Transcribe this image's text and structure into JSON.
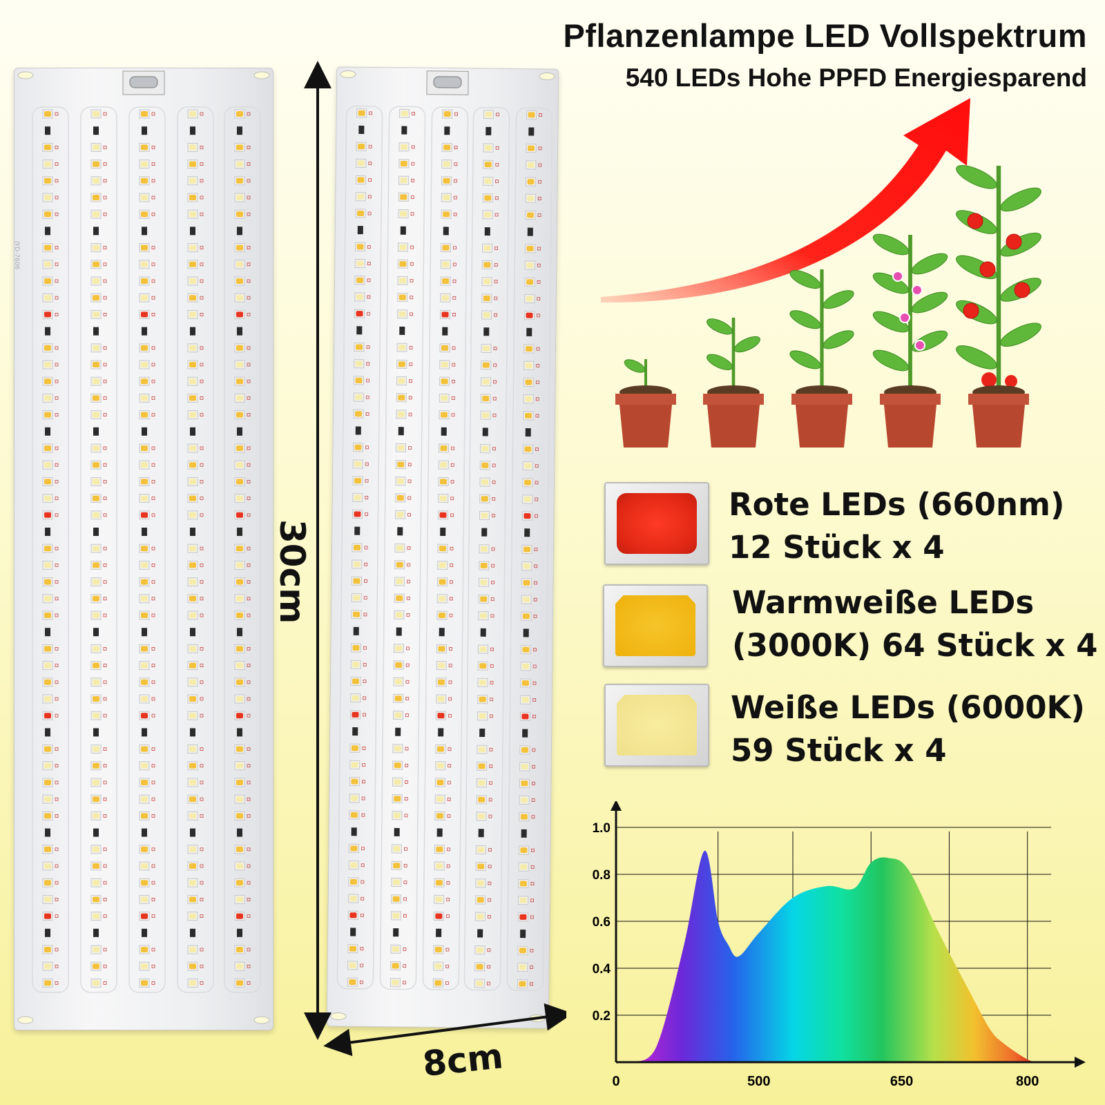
{
  "header": {
    "title": "Pflanzenlampe LED Vollspektrum",
    "subtitle": "540 LEDs Hohe PPFD Energiesparend"
  },
  "dimensions": {
    "height_label": "30cm",
    "width_label": "8cm"
  },
  "board": {
    "silkscreen": "JYD-7606"
  },
  "led_types": [
    {
      "name": "Rote LEDs (660nm)",
      "count": "12 Stück x 4",
      "color": "#e8331f"
    },
    {
      "name": "Warmweiße LEDs",
      "count": "(3000K) 64 Stück x 4",
      "color": "#f3b90f"
    },
    {
      "name": "Weiße LEDs (6000K)",
      "count": "59 Stück x 4",
      "color": "#f7e79a"
    }
  ],
  "chart_data": {
    "type": "area",
    "x_ticks": [
      "0",
      "500",
      "650",
      "800"
    ],
    "y_ticks": [
      "0.2",
      "0.4",
      "0.6",
      "0.8",
      "1.0"
    ],
    "ylim": [
      0,
      1.0
    ],
    "xlabel": "",
    "ylabel": "",
    "grid": true,
    "x": [
      0.05,
      0.12,
      0.2,
      0.26,
      0.3,
      0.33,
      0.36,
      0.42,
      0.52,
      0.62,
      0.7,
      0.75,
      0.8,
      0.86,
      0.95,
      1.04,
      1.1,
      1.14,
      1.2,
      1.23
    ],
    "values": [
      0.0,
      0.07,
      0.5,
      0.9,
      0.6,
      0.5,
      0.45,
      0.55,
      0.7,
      0.75,
      0.74,
      0.85,
      0.87,
      0.82,
      0.55,
      0.3,
      0.14,
      0.08,
      0.02,
      0.0
    ]
  }
}
